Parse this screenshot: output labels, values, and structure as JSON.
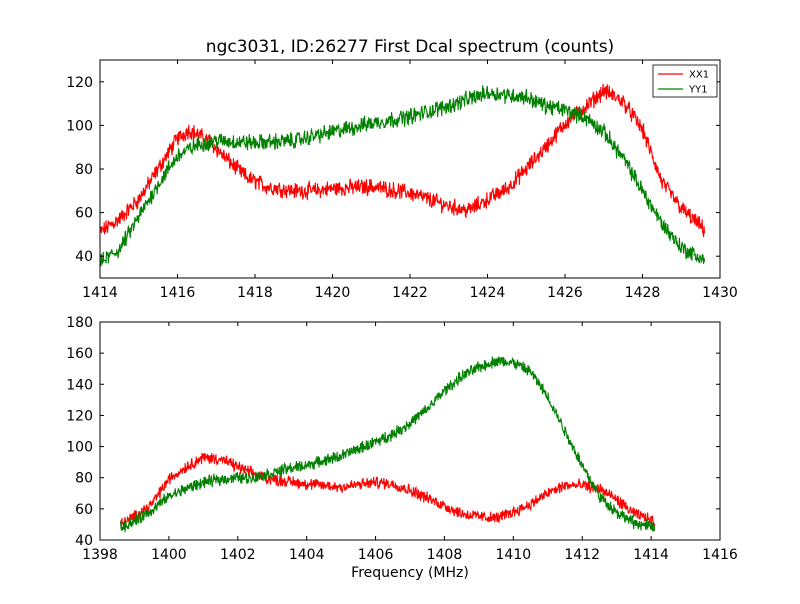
{
  "figure": {
    "title": "ngc3031, ID:26277 First Dcal spectrum (counts)"
  },
  "chart_data": [
    {
      "type": "line",
      "title": "ngc3031, ID:26277 First Dcal spectrum (counts)",
      "xlabel": "",
      "ylabel": "",
      "xlim": [
        1414,
        1430
      ],
      "ylim": [
        30,
        130
      ],
      "xticks": [
        1414,
        1416,
        1418,
        1420,
        1422,
        1424,
        1426,
        1428,
        1430
      ],
      "yticks": [
        40,
        60,
        80,
        100,
        120
      ],
      "legend": {
        "placement": "top-right",
        "entries": [
          "XX1",
          "YY1"
        ]
      },
      "grid": false,
      "series": [
        {
          "name": "XX1",
          "color": "#ff0000",
          "x": [
            1414.0,
            1414.5,
            1415.0,
            1415.5,
            1416.0,
            1416.3,
            1416.8,
            1417.3,
            1417.8,
            1418.3,
            1419.0,
            1419.5,
            1420.0,
            1421.0,
            1422.0,
            1422.5,
            1423.0,
            1423.5,
            1424.0,
            1424.5,
            1425.0,
            1425.5,
            1426.0,
            1426.5,
            1427.0,
            1427.5,
            1428.0,
            1428.5,
            1429.0,
            1429.6
          ],
          "y": [
            51,
            57,
            66,
            80,
            94,
            98,
            93,
            84,
            76,
            72,
            70,
            70,
            71,
            72,
            69,
            66,
            63,
            61,
            66,
            71,
            80,
            90,
            101,
            108,
            116,
            111,
            98,
            74,
            62,
            52
          ]
        },
        {
          "name": "YY1",
          "color": "#008000",
          "x": [
            1414.0,
            1414.5,
            1415.0,
            1415.5,
            1416.0,
            1416.5,
            1417.0,
            1418.0,
            1419.0,
            1420.0,
            1421.0,
            1422.0,
            1423.0,
            1424.0,
            1424.5,
            1425.0,
            1425.5,
            1426.0,
            1426.5,
            1427.0,
            1427.5,
            1428.0,
            1428.5,
            1429.0,
            1429.6
          ],
          "y": [
            37,
            43,
            58,
            73,
            86,
            91,
            93,
            92,
            93,
            97,
            101,
            104,
            109,
            115,
            114,
            113,
            109,
            107,
            104,
            97,
            85,
            70,
            55,
            44,
            38
          ]
        }
      ]
    },
    {
      "type": "line",
      "title": "",
      "xlabel": "Frequency (MHz)",
      "ylabel": "",
      "xlim": [
        1398,
        1416
      ],
      "ylim": [
        40,
        180
      ],
      "xticks": [
        1398,
        1400,
        1402,
        1404,
        1406,
        1408,
        1410,
        1412,
        1414,
        1416
      ],
      "yticks": [
        40,
        60,
        80,
        100,
        120,
        140,
        160,
        180
      ],
      "grid": false,
      "series": [
        {
          "name": "XX1",
          "color": "#ff0000",
          "x": [
            1398.6,
            1399.0,
            1399.5,
            1400.0,
            1400.5,
            1401.0,
            1401.5,
            1402.0,
            1402.5,
            1403.0,
            1404.0,
            1405.0,
            1406.0,
            1406.5,
            1407.0,
            1407.5,
            1408.0,
            1408.5,
            1409.0,
            1409.5,
            1410.0,
            1410.5,
            1411.0,
            1411.5,
            1412.0,
            1412.5,
            1413.0,
            1413.5,
            1414.1
          ],
          "y": [
            50,
            55,
            63,
            79,
            87,
            93,
            92,
            87,
            82,
            79,
            76,
            74,
            77,
            76,
            72,
            67,
            62,
            57,
            55,
            54,
            58,
            63,
            70,
            75,
            75,
            73,
            66,
            57,
            52
          ]
        },
        {
          "name": "YY1",
          "color": "#008000",
          "x": [
            1398.6,
            1399.0,
            1399.5,
            1400.0,
            1400.5,
            1401.0,
            1401.5,
            1402.0,
            1402.5,
            1403.0,
            1403.5,
            1404.0,
            1405.0,
            1406.0,
            1406.5,
            1407.0,
            1407.5,
            1408.0,
            1408.5,
            1409.0,
            1409.5,
            1410.0,
            1410.5,
            1411.0,
            1411.5,
            1412.0,
            1412.5,
            1413.0,
            1413.5,
            1414.1
          ],
          "y": [
            48,
            52,
            59,
            68,
            73,
            77,
            79,
            80,
            80,
            83,
            86,
            88,
            94,
            103,
            108,
            115,
            124,
            136,
            145,
            151,
            155,
            154,
            148,
            132,
            110,
            88,
            68,
            58,
            51,
            48
          ]
        }
      ]
    }
  ]
}
